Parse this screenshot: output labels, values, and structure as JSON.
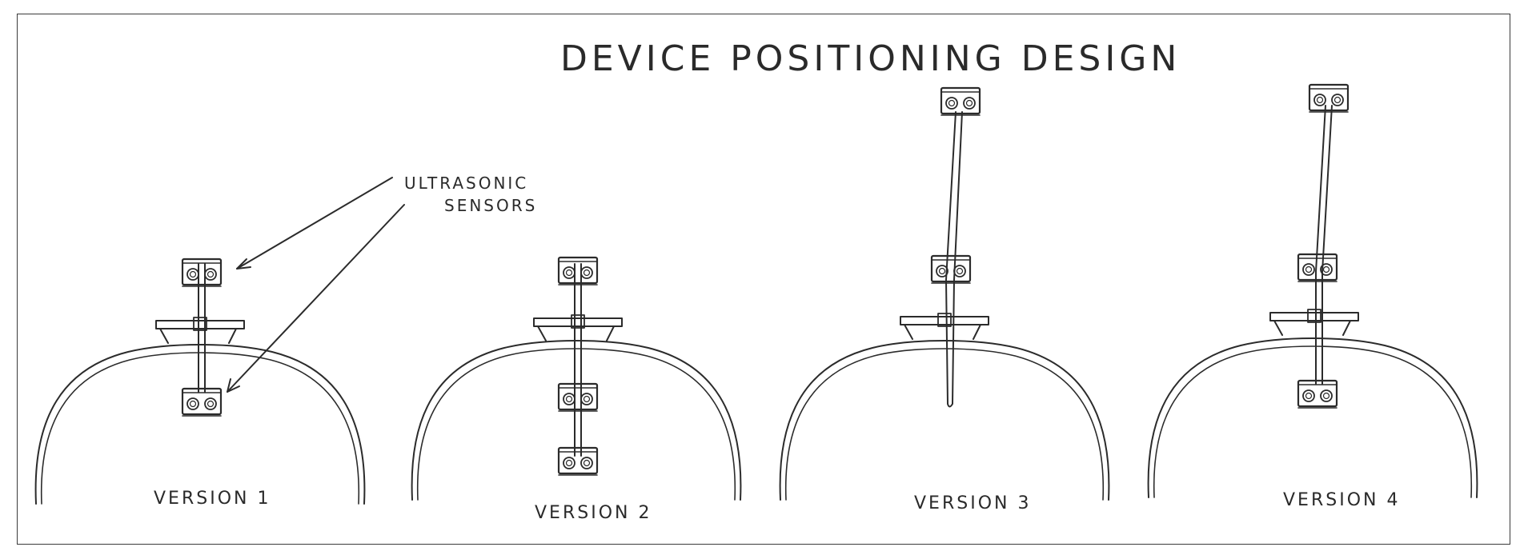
{
  "title": "DEVICE POSITIONING DESIGN",
  "annotation": {
    "line1": "ULTRASONIC",
    "line2": "SENSORS"
  },
  "versions": [
    {
      "label": "VERSION 1"
    },
    {
      "label": "VERSION 2"
    },
    {
      "label": "VERSION 3"
    },
    {
      "label": "VERSION 4"
    }
  ],
  "colors": {
    "ink": "#2b2b2b",
    "paper": "#ffffff",
    "frame": "#3a3a3a"
  }
}
